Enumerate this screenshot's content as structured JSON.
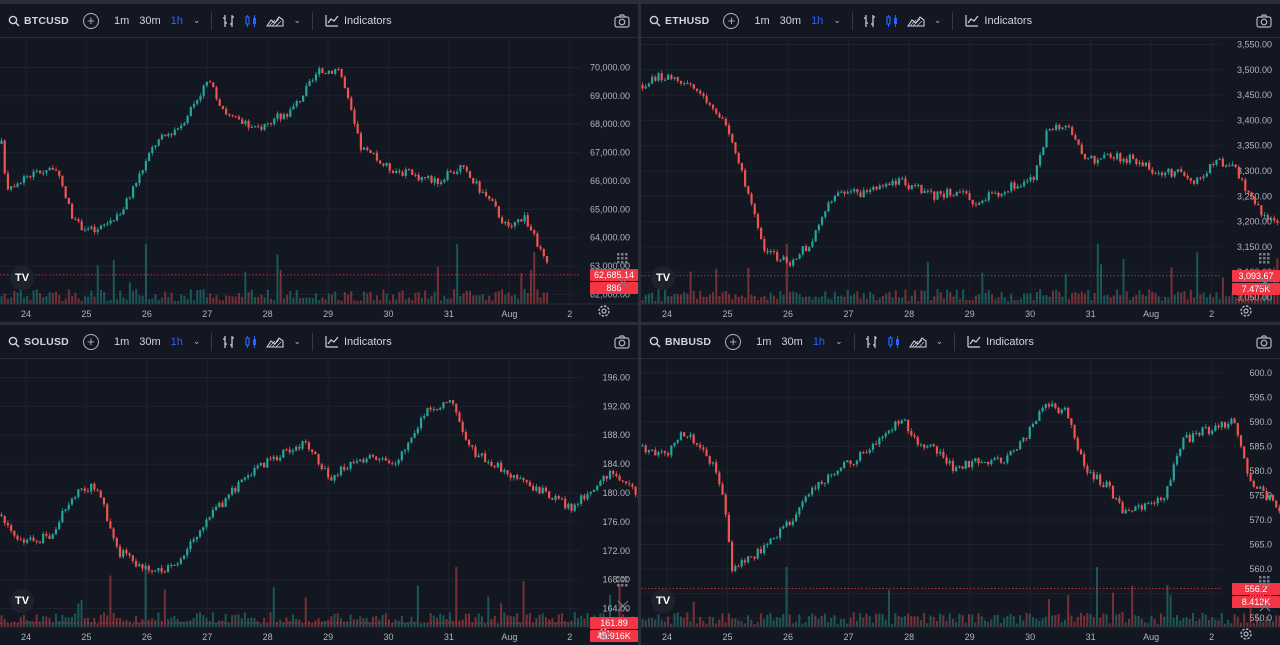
{
  "toolbar": {
    "intervals": [
      "1m",
      "30m",
      "1h"
    ],
    "active_interval": "1h",
    "indicators_label": "Indicators"
  },
  "x_labels": [
    "24",
    "25",
    "26",
    "27",
    "28",
    "29",
    "30",
    "31",
    "Aug",
    "2"
  ],
  "logo": "TV",
  "colors": {
    "up": "#26a69a",
    "down": "#ef5350",
    "background": "#131722",
    "grid": "#1e222d",
    "price_line": "#f23645"
  },
  "panels": [
    {
      "id": "btc",
      "symbol": "BTCUSD",
      "y_ticks": [
        "70,000.00",
        "69,000.00",
        "68,000.00",
        "67,000.00",
        "66,000.00",
        "65,000.00",
        "64,000.00",
        "63,000.00",
        "62,000.00"
      ],
      "price_label": "62,685.14",
      "volume_label": "886",
      "chart_data": {
        "type": "candlestick",
        "x": [
          "24",
          "25",
          "26",
          "27",
          "28",
          "29",
          "30",
          "31",
          "Aug",
          "2"
        ],
        "ylim": [
          61800,
          70900
        ],
        "close_path": [
          [
            0,
            67300
          ],
          [
            0.1,
            65800
          ],
          [
            0.5,
            66200
          ],
          [
            1.0,
            66500
          ],
          [
            1.4,
            64500
          ],
          [
            1.8,
            64200
          ],
          [
            2.3,
            65000
          ],
          [
            2.9,
            67300
          ],
          [
            3.4,
            68000
          ],
          [
            3.9,
            69500
          ],
          [
            4.3,
            68300
          ],
          [
            4.8,
            67800
          ],
          [
            5.5,
            68500
          ],
          [
            6.0,
            69800
          ],
          [
            6.4,
            70000
          ],
          [
            6.8,
            67200
          ],
          [
            7.3,
            66500
          ],
          [
            7.8,
            66200
          ],
          [
            8.3,
            66000
          ],
          [
            8.7,
            66500
          ],
          [
            9.3,
            65200
          ],
          [
            9.6,
            64300
          ],
          [
            9.9,
            64800
          ],
          [
            10.3,
            63200
          ],
          [
            10.4,
            62685
          ]
        ]
      }
    },
    {
      "id": "eth",
      "symbol": "ETHUSD",
      "y_ticks": [
        "3,550.00",
        "3,500.00",
        "3,450.00",
        "3,400.00",
        "3,350.00",
        "3,300.00",
        "3,250.00",
        "3,200.00",
        "3,150.00",
        "3,100.00",
        "3,050.00"
      ],
      "price_label": "3,093.67",
      "volume_label": "7.475K",
      "chart_data": {
        "type": "candlestick",
        "x": [
          "24",
          "25",
          "26",
          "27",
          "28",
          "29",
          "30",
          "31",
          "Aug",
          "2"
        ],
        "ylim": [
          3045,
          3555
        ],
        "close_path": [
          [
            0,
            3470
          ],
          [
            0.3,
            3490
          ],
          [
            0.9,
            3470
          ],
          [
            1.5,
            3410
          ],
          [
            1.9,
            3290
          ],
          [
            2.3,
            3140
          ],
          [
            2.8,
            3120
          ],
          [
            3.2,
            3160
          ],
          [
            3.6,
            3250
          ],
          [
            4.3,
            3260
          ],
          [
            4.9,
            3280
          ],
          [
            5.5,
            3250
          ],
          [
            5.9,
            3260
          ],
          [
            6.3,
            3240
          ],
          [
            6.8,
            3260
          ],
          [
            7.4,
            3290
          ],
          [
            7.7,
            3390
          ],
          [
            8.1,
            3380
          ],
          [
            8.4,
            3320
          ],
          [
            8.9,
            3330
          ],
          [
            9.4,
            3320
          ],
          [
            9.7,
            3290
          ],
          [
            10.1,
            3300
          ],
          [
            10.5,
            3280
          ],
          [
            10.8,
            3320
          ],
          [
            11.2,
            3310
          ],
          [
            11.6,
            3230
          ],
          [
            11.9,
            3200
          ],
          [
            12.2,
            3190
          ],
          [
            12.5,
            3175
          ],
          [
            12.8,
            3093
          ]
        ]
      }
    },
    {
      "id": "sol",
      "symbol": "SOLUSD",
      "y_ticks": [
        "196.00",
        "192.00",
        "188.00",
        "184.00",
        "180.00",
        "176.00",
        "172.00",
        "168.00",
        "164.00"
      ],
      "price_label": "161.89",
      "volume_label": "49.916K",
      "chart_data": {
        "type": "candlestick",
        "x": [
          "24",
          "25",
          "26",
          "27",
          "28",
          "29",
          "30",
          "31",
          "Aug",
          "2"
        ],
        "ylim": [
          162,
          198
        ],
        "close_path": [
          [
            0,
            177
          ],
          [
            0.4,
            173
          ],
          [
            0.9,
            174
          ],
          [
            1.4,
            180
          ],
          [
            1.8,
            181
          ],
          [
            2.2,
            172
          ],
          [
            2.6,
            170
          ],
          [
            3.1,
            169
          ],
          [
            3.5,
            172
          ],
          [
            4.0,
            177
          ],
          [
            4.6,
            182
          ],
          [
            5.2,
            185
          ],
          [
            5.8,
            187
          ],
          [
            6.2,
            182
          ],
          [
            6.6,
            184
          ],
          [
            7.1,
            185
          ],
          [
            7.5,
            184
          ],
          [
            8.0,
            191
          ],
          [
            8.5,
            193
          ],
          [
            8.9,
            186
          ],
          [
            9.3,
            184
          ],
          [
            9.8,
            182
          ],
          [
            10.3,
            180
          ],
          [
            10.8,
            178
          ],
          [
            11.3,
            181
          ],
          [
            11.6,
            183
          ],
          [
            11.9,
            181
          ],
          [
            12.3,
            176
          ],
          [
            12.6,
            172
          ],
          [
            13.0,
            169
          ],
          [
            13.3,
            171
          ],
          [
            13.6,
            170
          ],
          [
            13.9,
            162
          ]
        ]
      }
    },
    {
      "id": "bnb",
      "symbol": "BNBUSD",
      "y_ticks": [
        "600.0",
        "595.0",
        "590.0",
        "585.0",
        "580.0",
        "575.0",
        "570.0",
        "565.0",
        "560.0",
        "555.0",
        "550.0"
      ],
      "price_label": "556.2",
      "volume_label": "8.412K",
      "chart_data": {
        "type": "candlestick",
        "x": [
          "24",
          "25",
          "26",
          "27",
          "28",
          "29",
          "30",
          "31",
          "Aug",
          "2"
        ],
        "ylim": [
          549,
          602
        ],
        "close_path": [
          [
            0,
            585
          ],
          [
            0.4,
            583
          ],
          [
            0.8,
            588
          ],
          [
            1.2,
            584
          ],
          [
            1.5,
            577
          ],
          [
            1.7,
            560
          ],
          [
            2.0,
            562
          ],
          [
            2.4,
            565
          ],
          [
            2.8,
            570
          ],
          [
            3.2,
            576
          ],
          [
            3.7,
            580
          ],
          [
            4.1,
            583
          ],
          [
            4.5,
            586
          ],
          [
            4.9,
            591
          ],
          [
            5.2,
            586
          ],
          [
            5.6,
            584
          ],
          [
            5.9,
            580
          ],
          [
            6.3,
            582
          ],
          [
            6.8,
            582
          ],
          [
            7.2,
            586
          ],
          [
            7.6,
            594
          ],
          [
            8.0,
            592
          ],
          [
            8.4,
            580
          ],
          [
            8.8,
            577
          ],
          [
            9.1,
            572
          ],
          [
            9.5,
            573
          ],
          [
            9.9,
            575
          ],
          [
            10.2,
            586
          ],
          [
            10.6,
            588
          ],
          [
            10.9,
            589
          ],
          [
            11.2,
            590
          ],
          [
            11.5,
            578
          ],
          [
            11.9,
            574
          ],
          [
            12.3,
            566
          ],
          [
            12.7,
            573
          ],
          [
            13.0,
            568
          ],
          [
            13.2,
            556
          ]
        ]
      }
    }
  ]
}
